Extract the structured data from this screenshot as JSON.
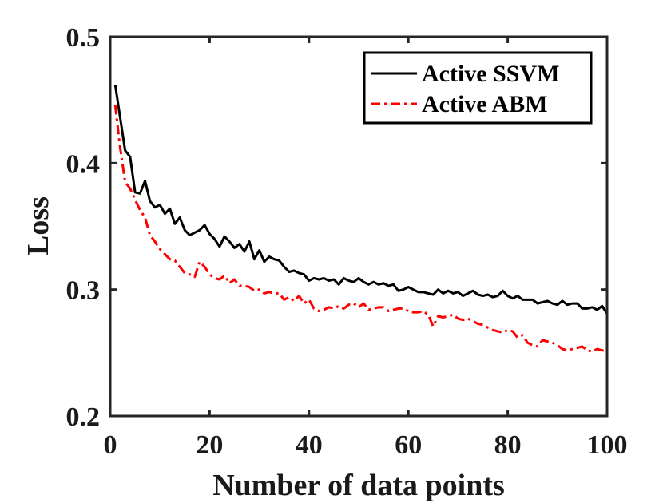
{
  "chart_data": {
    "type": "line",
    "xlabel": "Number of data points",
    "ylabel": "Loss",
    "xlim": [
      0,
      100
    ],
    "ylim": [
      0.2,
      0.5
    ],
    "xticks": [
      "0",
      "20",
      "40",
      "60",
      "80",
      "100"
    ],
    "yticks": [
      "0.2",
      "0.3",
      "0.4",
      "0.5"
    ],
    "grid": false,
    "legend_position": "top-right",
    "x": [
      1,
      2,
      3,
      4,
      5,
      6,
      7,
      8,
      9,
      10,
      11,
      12,
      13,
      14,
      15,
      16,
      17,
      18,
      19,
      20,
      21,
      22,
      23,
      24,
      25,
      26,
      27,
      28,
      29,
      30,
      31,
      32,
      33,
      34,
      35,
      36,
      37,
      38,
      39,
      40,
      41,
      42,
      43,
      44,
      45,
      46,
      47,
      48,
      49,
      50,
      51,
      52,
      53,
      54,
      55,
      56,
      57,
      58,
      59,
      60,
      61,
      62,
      63,
      64,
      65,
      66,
      67,
      68,
      69,
      70,
      71,
      72,
      73,
      74,
      75,
      76,
      77,
      78,
      79,
      80,
      81,
      82,
      83,
      84,
      85,
      86,
      87,
      88,
      89,
      90,
      91,
      92,
      93,
      94,
      95,
      96,
      97,
      98,
      99,
      100
    ],
    "series": [
      {
        "name": "Active SSVM",
        "color": "#000000",
        "dash": "solid",
        "values": [
          0.462,
          0.436,
          0.41,
          0.405,
          0.377,
          0.376,
          0.386,
          0.37,
          0.365,
          0.367,
          0.36,
          0.364,
          0.352,
          0.357,
          0.347,
          0.343,
          0.345,
          0.347,
          0.351,
          0.344,
          0.34,
          0.334,
          0.342,
          0.338,
          0.333,
          0.336,
          0.33,
          0.338,
          0.324,
          0.331,
          0.322,
          0.326,
          0.324,
          0.323,
          0.318,
          0.314,
          0.315,
          0.313,
          0.312,
          0.307,
          0.309,
          0.308,
          0.309,
          0.307,
          0.308,
          0.304,
          0.309,
          0.307,
          0.306,
          0.309,
          0.306,
          0.304,
          0.306,
          0.304,
          0.305,
          0.303,
          0.304,
          0.299,
          0.3,
          0.302,
          0.3,
          0.298,
          0.298,
          0.297,
          0.296,
          0.3,
          0.297,
          0.299,
          0.297,
          0.298,
          0.295,
          0.297,
          0.299,
          0.296,
          0.295,
          0.296,
          0.294,
          0.295,
          0.299,
          0.295,
          0.293,
          0.295,
          0.292,
          0.292,
          0.292,
          0.289,
          0.29,
          0.291,
          0.289,
          0.288,
          0.291,
          0.288,
          0.289,
          0.289,
          0.285,
          0.285,
          0.286,
          0.284,
          0.287,
          0.281
        ]
      },
      {
        "name": "Active ABM",
        "color": "#ff0000",
        "dash": "dashdot",
        "values": [
          0.446,
          0.412,
          0.385,
          0.38,
          0.371,
          0.363,
          0.357,
          0.343,
          0.338,
          0.332,
          0.328,
          0.324,
          0.323,
          0.318,
          0.313,
          0.312,
          0.31,
          0.322,
          0.318,
          0.312,
          0.309,
          0.308,
          0.311,
          0.305,
          0.308,
          0.303,
          0.303,
          0.302,
          0.299,
          0.3,
          0.297,
          0.298,
          0.297,
          0.297,
          0.292,
          0.294,
          0.291,
          0.295,
          0.289,
          0.292,
          0.285,
          0.283,
          0.284,
          0.286,
          0.285,
          0.287,
          0.285,
          0.288,
          0.289,
          0.286,
          0.289,
          0.284,
          0.285,
          0.286,
          0.286,
          0.283,
          0.284,
          0.285,
          0.285,
          0.283,
          0.282,
          0.282,
          0.283,
          0.28,
          0.271,
          0.279,
          0.278,
          0.279,
          0.28,
          0.277,
          0.276,
          0.277,
          0.275,
          0.273,
          0.272,
          0.27,
          0.268,
          0.267,
          0.266,
          0.268,
          0.267,
          0.262,
          0.264,
          0.258,
          0.256,
          0.255,
          0.26,
          0.259,
          0.258,
          0.256,
          0.253,
          0.252,
          0.253,
          0.254,
          0.255,
          0.252,
          0.251,
          0.253,
          0.252,
          0.251
        ]
      }
    ]
  }
}
